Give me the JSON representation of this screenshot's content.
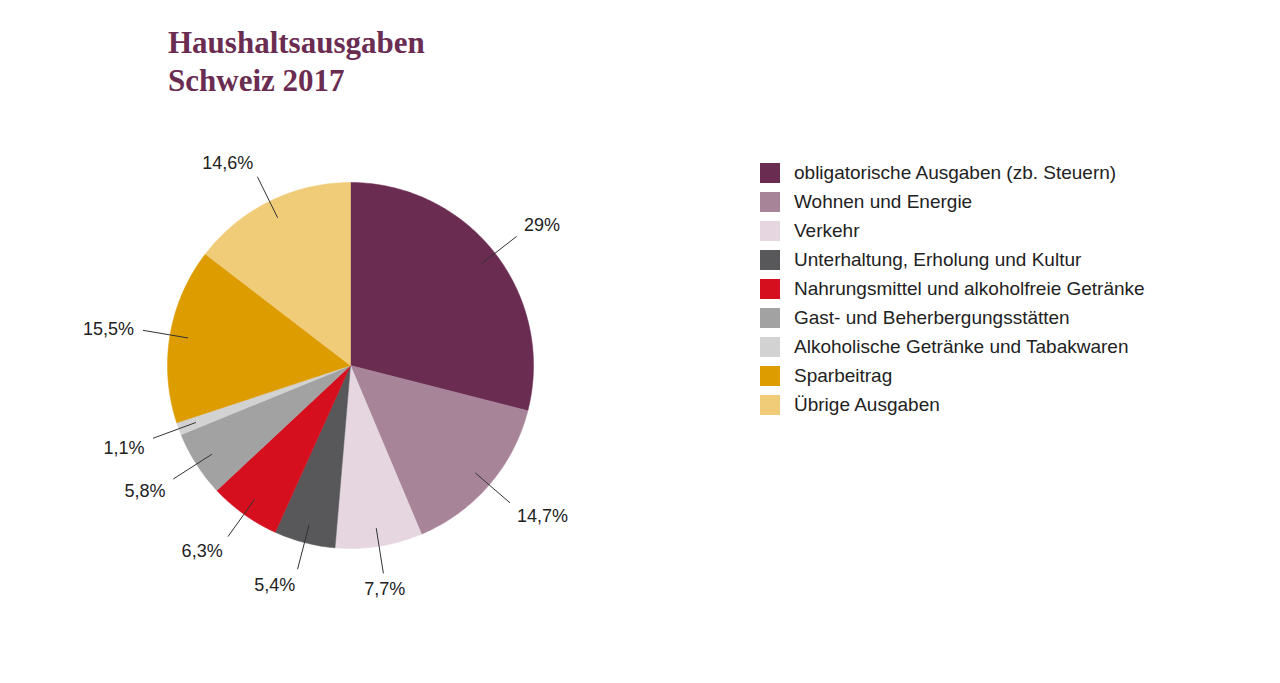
{
  "chart_data": {
    "type": "pie",
    "title": "Haushaltsausgaben Schweiz 2017",
    "categories": [
      "obligatorische Ausgaben (zb. Steuern)",
      "Wohnen und Energie",
      "Verkehr",
      "Unterhaltung, Erholung und Kultur",
      "Nahrungsmittel und alkoholfreie Getränke",
      "Gast- und Beherbergungsstätten",
      "Alkoholische Getränke und Tabakwaren",
      "Sparbeitrag",
      "Übrige Ausgaben"
    ],
    "values": [
      29,
      14.7,
      7.7,
      5.4,
      6.3,
      5.8,
      1.1,
      15.5,
      14.6
    ],
    "value_labels": [
      "29%",
      "14,7%",
      "7,7%",
      "5,4%",
      "6,3%",
      "5,8%",
      "1,1%",
      "15,5%",
      "14,6%"
    ],
    "colors": [
      "#6b2c52",
      "#a88499",
      "#e5d6e0",
      "#58585a",
      "#d50f1e",
      "#a2a2a2",
      "#d2d2d2",
      "#dd9c00",
      "#f0cb78"
    ],
    "data_labels": true,
    "legend": "right"
  }
}
